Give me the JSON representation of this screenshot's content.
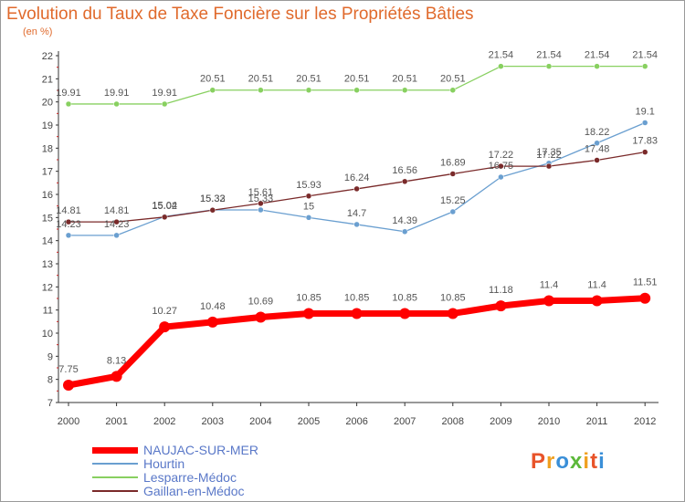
{
  "title": "Evolution du Taux de Taxe Foncière sur les Propriétés Bâties",
  "unit_label": "(en %)",
  "logo_text": "Proxiti",
  "logo_colors": [
    "#e8542a",
    "#f0a020",
    "#3a8fd8",
    "#5cb83a",
    "#f0a020",
    "#e8542a",
    "#3a8fd8"
  ],
  "chart_data": {
    "type": "line",
    "x": [
      "2000",
      "2001",
      "2002",
      "2003",
      "2004",
      "2005",
      "2006",
      "2007",
      "2008",
      "2009",
      "2010",
      "2011",
      "2012"
    ],
    "yticks": [
      "7",
      "8",
      "9",
      "10",
      "11",
      "12",
      "13",
      "14",
      "15",
      "16",
      "17",
      "18",
      "19",
      "20",
      "21",
      "22"
    ],
    "ylim": [
      7,
      22
    ],
    "grid": false,
    "legend_position": "bottom-left",
    "series": [
      {
        "name": "NAUJAC-SUR-MER",
        "color": "#ff0000",
        "values": [
          7.75,
          8.13,
          10.27,
          10.48,
          10.69,
          10.85,
          10.85,
          10.85,
          10.85,
          11.18,
          11.4,
          11.4,
          11.51
        ],
        "labels": [
          "7.75",
          "8.13",
          "10.27",
          "10.48",
          "10.69",
          "10.85",
          "10.85",
          "10.85",
          "10.85",
          "11.18",
          "11.4",
          "11.4",
          "11.51"
        ]
      },
      {
        "name": "Hourtin",
        "color": "#6a9fd0",
        "values": [
          14.23,
          14.23,
          15.04,
          15.33,
          15.33,
          15,
          14.7,
          14.39,
          15.25,
          16.75,
          17.35,
          18.22,
          19.1
        ],
        "labels": [
          "14.23",
          "14.23",
          "15.04",
          "15.33",
          "15.33",
          "15",
          "14.7",
          "14.39",
          "15.25",
          "16.75",
          "17.35",
          "18.22",
          "19.1"
        ]
      },
      {
        "name": "Lesparre-Médoc",
        "color": "#88d060",
        "values": [
          19.91,
          19.91,
          19.91,
          20.51,
          20.51,
          20.51,
          20.51,
          20.51,
          20.51,
          21.54,
          21.54,
          21.54,
          21.54
        ],
        "labels": [
          "19.91",
          "19.91",
          "19.91",
          "20.51",
          "20.51",
          "20.51",
          "20.51",
          "20.51",
          "20.51",
          "21.54",
          "21.54",
          "21.54",
          "21.54"
        ]
      },
      {
        "name": "Gaillan-en-Médoc",
        "color": "#7a2a2a",
        "values": [
          14.81,
          14.81,
          15.02,
          15.32,
          15.61,
          15.93,
          16.24,
          16.56,
          16.89,
          17.22,
          17.22,
          17.48,
          17.83
        ],
        "labels": [
          "14.81",
          "14.81",
          "15.02",
          "15.32",
          "15.61",
          "15.93",
          "16.24",
          "16.56",
          "16.89",
          "17.22",
          "17.22",
          "17.48",
          "17.83"
        ]
      }
    ]
  }
}
